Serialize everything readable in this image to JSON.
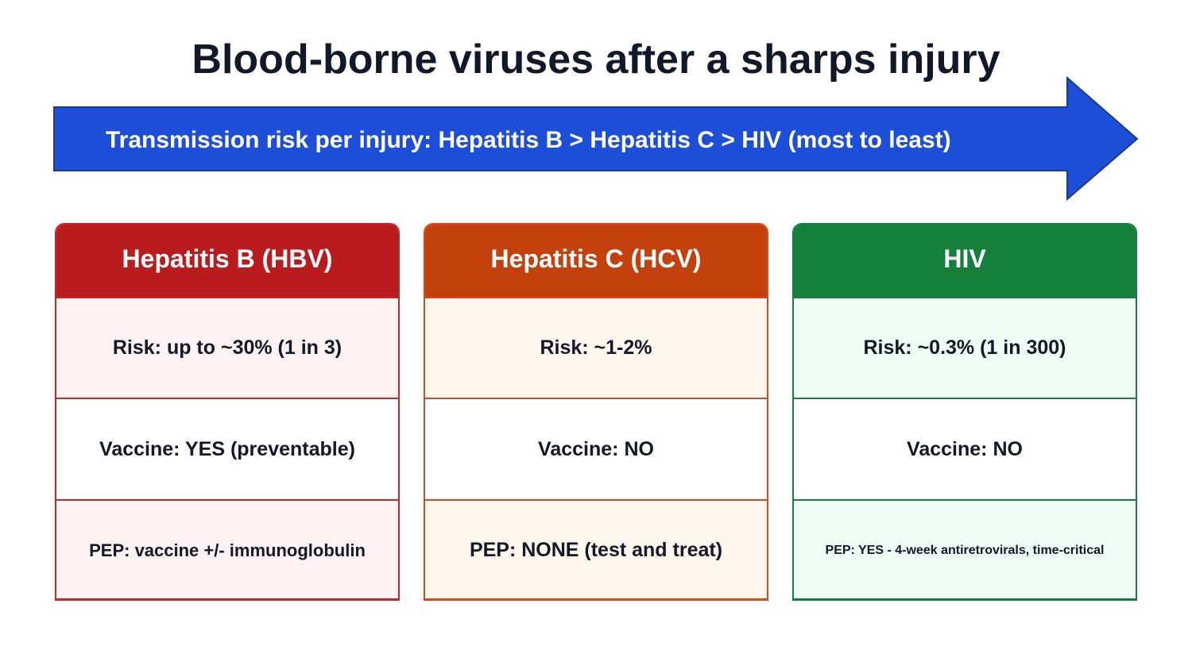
{
  "title": "Blood-borne viruses after a sharps injury",
  "arrow": {
    "label": "Transmission risk per injury: Hepatitis B > Hepatitis C > HIV (most to least)",
    "color": "#1d4ed8"
  },
  "viruses": [
    {
      "name": "Hepatitis B (HBV)",
      "risk": "Risk: up to ~30% (1 in 3)",
      "vaccine": "Vaccine: YES (preventable)",
      "pep": "PEP: vaccine +/- immunoglobulin",
      "header_color": "#b91c1c",
      "tint_color": "#fef2f2"
    },
    {
      "name": "Hepatitis C (HCV)",
      "risk": "Risk: ~1-2%",
      "vaccine": "Vaccine: NO",
      "pep": "PEP: NONE (test and treat)",
      "header_color": "#c2410c",
      "tint_color": "#fff7ed"
    },
    {
      "name": "HIV",
      "risk": "Risk: ~0.3% (1 in 300)",
      "vaccine": "Vaccine: NO",
      "pep": "PEP: YES - 4-week antiretrovirals, time-critical",
      "header_color": "#157f3c",
      "tint_color": "#f0fdf4"
    }
  ]
}
